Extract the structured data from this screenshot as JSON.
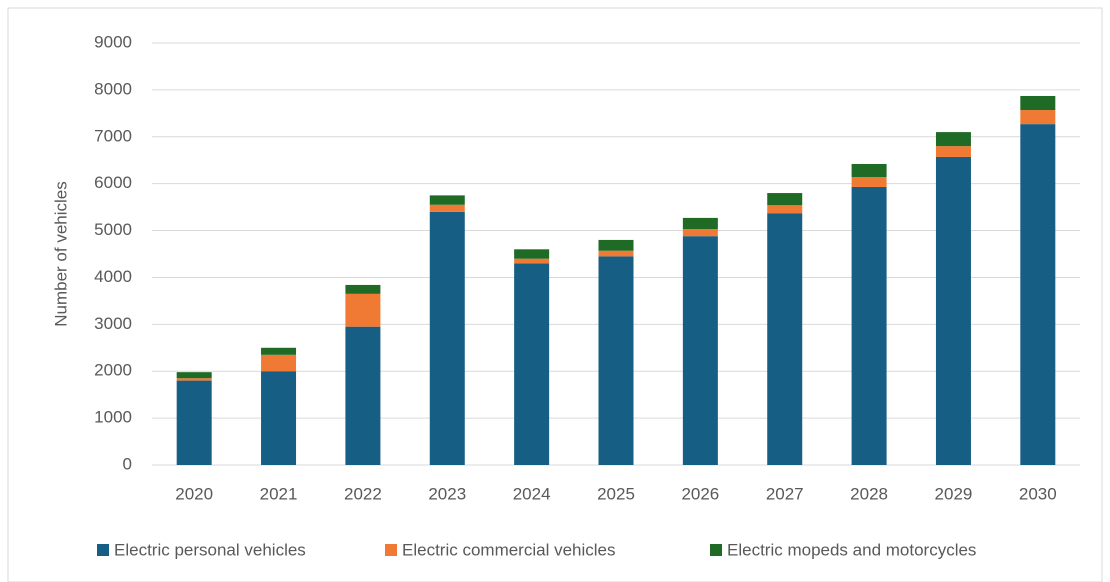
{
  "chart_data": {
    "type": "stacked_bar",
    "y_label": "Number of vehicles",
    "categories": [
      "2020",
      "2021",
      "2022",
      "2023",
      "2024",
      "2025",
      "2026",
      "2027",
      "2028",
      "2029",
      "2030"
    ],
    "series": [
      {
        "name": "Electric personal vehicles",
        "color": "#175e84",
        "values": [
          1800,
          2000,
          2950,
          5400,
          4300,
          4450,
          4880,
          5370,
          5930,
          6570,
          7270
        ]
      },
      {
        "name": "Electric commercial vehicles",
        "color": "#f07a33",
        "values": [
          50,
          350,
          700,
          150,
          100,
          120,
          150,
          170,
          210,
          230,
          300
        ]
      },
      {
        "name": "Electric mopeds and motorcycles",
        "color": "#1f6b26",
        "values": [
          130,
          150,
          190,
          200,
          200,
          230,
          240,
          260,
          280,
          300,
          300
        ]
      }
    ],
    "ylim": [
      0,
      9000
    ],
    "yticks": [
      0,
      1000,
      2000,
      3000,
      4000,
      5000,
      6000,
      7000,
      8000,
      9000
    ],
    "grid": true,
    "legend": "bottom"
  }
}
